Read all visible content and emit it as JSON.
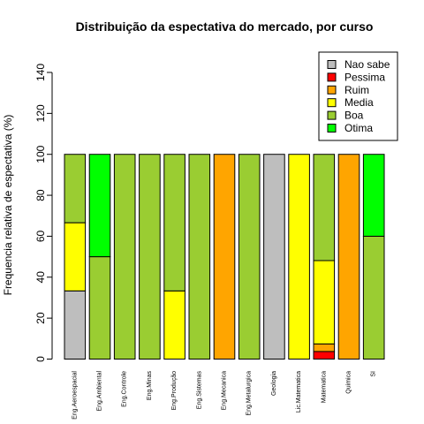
{
  "chart_data": {
    "type": "bar",
    "stacked": true,
    "title": "Distribuição da espectativa do mercado, por curso",
    "xlabel": "",
    "ylabel": "Frequencia relativa de espectativa (%)",
    "ylim": [
      0,
      140
    ],
    "yticks": [
      0,
      20,
      40,
      60,
      80,
      100,
      120,
      140
    ],
    "grid": false,
    "legend_position": "top-right",
    "categories": [
      "Eng.Aeroespacial",
      "Eng.Ambiental",
      "Eng.Controle",
      "Eng.Minas",
      "Eng.Produção",
      "Eng.Sistemas",
      "Eng.Mecanica",
      "Eng.Metalurgica",
      "Geologia",
      "Lic.Matematica",
      "Matematica",
      "Quimica",
      "SI"
    ],
    "series": [
      {
        "name": "Nao sabe",
        "color": "#BEBEBE",
        "values": [
          33.3,
          0,
          0,
          0,
          0,
          0,
          0,
          0,
          100,
          0,
          0,
          0,
          0
        ]
      },
      {
        "name": "Pessima",
        "color": "#FF0000",
        "values": [
          0,
          0,
          0,
          0,
          0,
          0,
          0,
          0,
          0,
          0,
          3.7,
          0,
          0
        ]
      },
      {
        "name": "Ruim",
        "color": "#FFA500",
        "values": [
          0,
          0,
          0,
          0,
          0,
          0,
          100,
          0,
          0,
          0,
          3.7,
          100,
          0
        ]
      },
      {
        "name": "Media",
        "color": "#FFFF00",
        "values": [
          33.3,
          0,
          0,
          0,
          33.3,
          0,
          0,
          0,
          0,
          100,
          40.7,
          0,
          0
        ]
      },
      {
        "name": "Boa",
        "color": "#9ACD32",
        "values": [
          33.4,
          50,
          100,
          100,
          66.7,
          100,
          0,
          100,
          0,
          0,
          51.9,
          0,
          60
        ]
      },
      {
        "name": "Otima",
        "color": "#00FF00",
        "values": [
          0,
          50,
          0,
          0,
          0,
          0,
          0,
          0,
          0,
          0,
          0,
          0,
          40
        ]
      }
    ]
  }
}
